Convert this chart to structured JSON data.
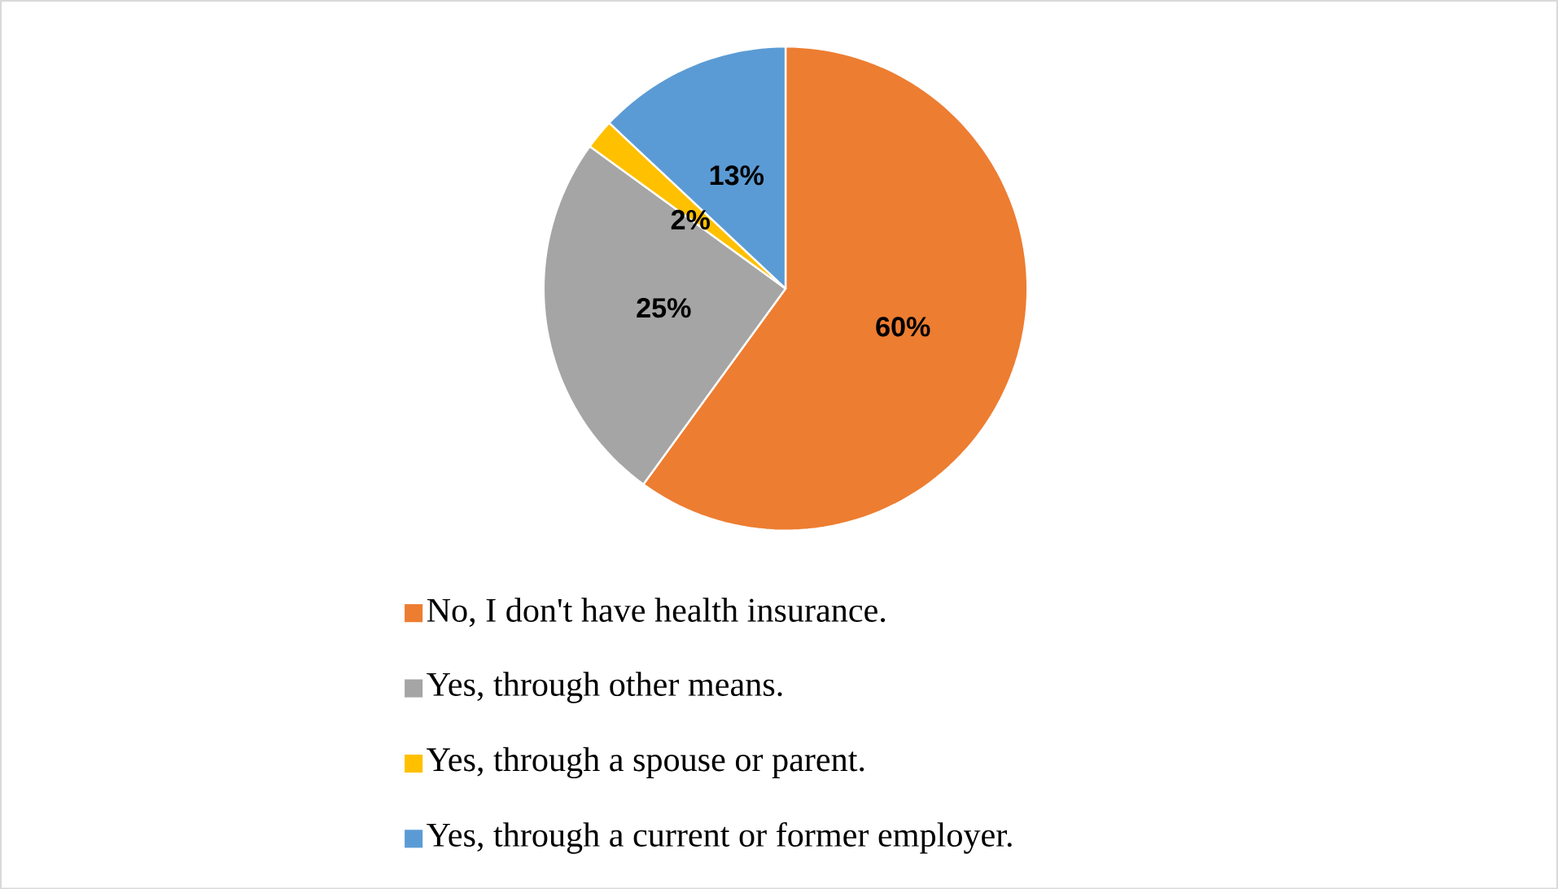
{
  "chart_data": {
    "type": "pie",
    "categories": [
      "No, I don't have health insurance.",
      "Yes, through other means.",
      "Yes, through a spouse or parent.",
      "Yes, through a current or former employer."
    ],
    "values": [
      60,
      25,
      2,
      13
    ],
    "colors": [
      "#ed7d31",
      "#a5a5a5",
      "#ffc000",
      "#5b9bd5"
    ],
    "value_labels": [
      "60%",
      "25%",
      "2%",
      "13%"
    ],
    "legend": "bottom"
  }
}
